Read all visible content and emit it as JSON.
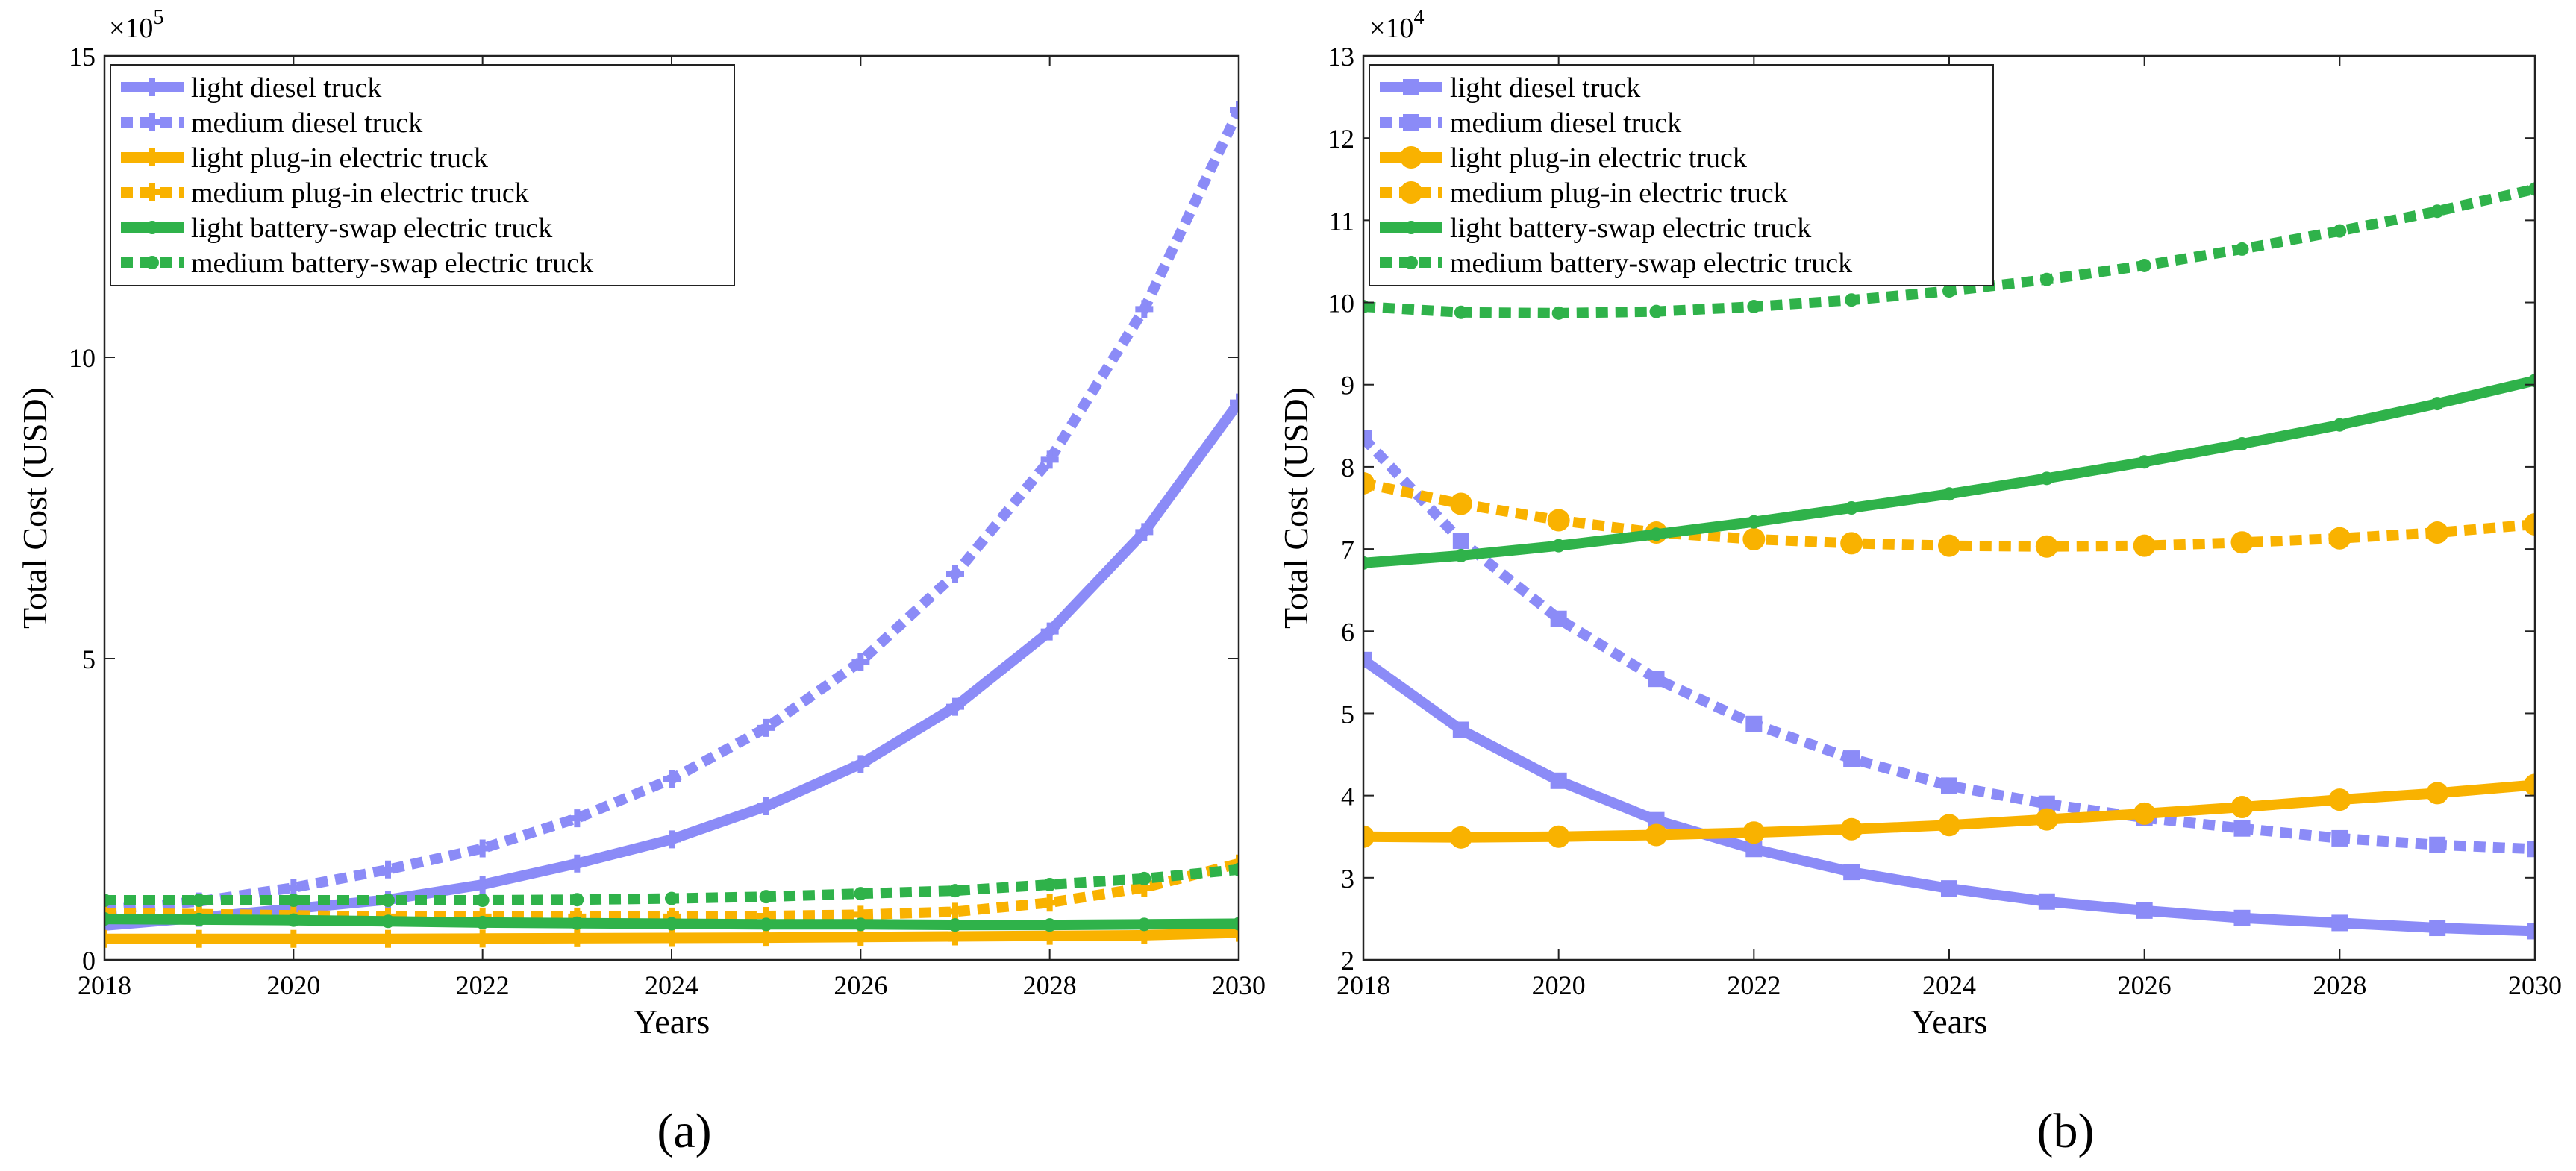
{
  "chart_data": [
    {
      "type": "line",
      "panel_label": "(a)",
      "xlabel": "Years",
      "ylabel": "Total Cost (USD)",
      "y_multiplier": "×10",
      "y_multiplier_exp": "5",
      "xlim": [
        2018,
        2030
      ],
      "ylim": [
        0,
        15
      ],
      "xticks": [
        2018,
        2020,
        2022,
        2024,
        2026,
        2028,
        2030
      ],
      "xtick_labels": [
        "2018",
        "2020",
        "2022",
        "2024",
        "2026",
        "2028",
        "2030"
      ],
      "yticks": [
        0,
        5,
        10,
        15
      ],
      "ytick_labels": [
        "0",
        "5",
        "10",
        "15"
      ],
      "legend_position": "top-left",
      "x": [
        2018,
        2019,
        2020,
        2021,
        2022,
        2023,
        2024,
        2025,
        2026,
        2027,
        2028,
        2029,
        2030
      ],
      "series": [
        {
          "name": "light diesel truck",
          "color": "#8b8bf7",
          "style": "solid",
          "marker": "plus",
          "values": [
            0.57,
            0.7,
            0.85,
            1.0,
            1.25,
            1.6,
            2.0,
            2.55,
            3.25,
            4.2,
            5.45,
            7.1,
            9.25
          ]
        },
        {
          "name": "medium diesel truck",
          "color": "#8b8bf7",
          "style": "dotted",
          "marker": "plus",
          "values": [
            0.83,
            0.97,
            1.2,
            1.5,
            1.85,
            2.35,
            3.0,
            3.85,
            4.95,
            6.4,
            8.3,
            10.8,
            14.1
          ]
        },
        {
          "name": "light plug-in electric truck",
          "color": "#f9b200",
          "style": "solid",
          "marker": "plus",
          "values": [
            0.35,
            0.35,
            0.35,
            0.35,
            0.355,
            0.36,
            0.365,
            0.37,
            0.38,
            0.39,
            0.4,
            0.41,
            0.45
          ]
        },
        {
          "name": "medium plug-in electric truck",
          "color": "#f9b200",
          "style": "dotted",
          "marker": "plus",
          "values": [
            0.78,
            0.76,
            0.74,
            0.72,
            0.72,
            0.72,
            0.72,
            0.73,
            0.75,
            0.8,
            0.95,
            1.2,
            1.6
          ]
        },
        {
          "name": "light battery-swap electric truck",
          "color": "#2fb24a",
          "style": "solid",
          "marker": "dot",
          "values": [
            0.68,
            0.67,
            0.66,
            0.64,
            0.62,
            0.61,
            0.6,
            0.59,
            0.59,
            0.58,
            0.58,
            0.59,
            0.6
          ]
        },
        {
          "name": "medium battery-swap electric truck",
          "color": "#2fb24a",
          "style": "dotted",
          "marker": "dot",
          "values": [
            0.99,
            0.99,
            0.99,
            0.99,
            0.99,
            1.0,
            1.02,
            1.05,
            1.1,
            1.15,
            1.25,
            1.35,
            1.5
          ]
        }
      ]
    },
    {
      "type": "line",
      "panel_label": "(b)",
      "xlabel": "Years",
      "ylabel": "Total Cost (USD)",
      "y_multiplier": "×10",
      "y_multiplier_exp": "4",
      "xlim": [
        2018,
        2030
      ],
      "ylim": [
        2,
        13
      ],
      "xticks": [
        2018,
        2020,
        2022,
        2024,
        2026,
        2028,
        2030
      ],
      "xtick_labels": [
        "2018",
        "2020",
        "2022",
        "2024",
        "2026",
        "2028",
        "2030"
      ],
      "yticks": [
        2,
        3,
        4,
        5,
        6,
        7,
        8,
        9,
        10,
        11,
        12,
        13
      ],
      "ytick_labels": [
        "2",
        "3",
        "4",
        "5",
        "6",
        "7",
        "8",
        "9",
        "10",
        "11",
        "12",
        "13"
      ],
      "legend_position": "top-left",
      "x": [
        2018,
        2019,
        2020,
        2021,
        2022,
        2023,
        2024,
        2025,
        2026,
        2027,
        2028,
        2029,
        2030
      ],
      "series": [
        {
          "name": "light diesel truck",
          "color": "#8b8bf7",
          "style": "solid",
          "marker": "square",
          "values": [
            5.65,
            4.8,
            4.18,
            3.7,
            3.35,
            3.07,
            2.87,
            2.71,
            2.6,
            2.51,
            2.45,
            2.39,
            2.35
          ]
        },
        {
          "name": "medium diesel truck",
          "color": "#8b8bf7",
          "style": "dotted",
          "marker": "square",
          "values": [
            8.35,
            7.1,
            6.15,
            5.42,
            4.87,
            4.45,
            4.12,
            3.9,
            3.73,
            3.6,
            3.48,
            3.4,
            3.35
          ]
        },
        {
          "name": "light plug-in electric truck",
          "color": "#f9b200",
          "style": "solid",
          "marker": "circle",
          "values": [
            3.5,
            3.49,
            3.5,
            3.52,
            3.55,
            3.59,
            3.64,
            3.71,
            3.78,
            3.86,
            3.95,
            4.03,
            4.13
          ]
        },
        {
          "name": "medium plug-in electric truck",
          "color": "#f9b200",
          "style": "dotted",
          "marker": "circle",
          "values": [
            7.8,
            7.55,
            7.35,
            7.2,
            7.12,
            7.07,
            7.04,
            7.03,
            7.04,
            7.08,
            7.13,
            7.2,
            7.3
          ]
        },
        {
          "name": "light battery-swap electric truck",
          "color": "#2fb24a",
          "style": "solid",
          "marker": "dot",
          "values": [
            6.83,
            6.92,
            7.04,
            7.18,
            7.33,
            7.5,
            7.67,
            7.86,
            8.06,
            8.28,
            8.51,
            8.77,
            9.05
          ]
        },
        {
          "name": "medium battery-swap electric truck",
          "color": "#2fb24a",
          "style": "dotted",
          "marker": "dot",
          "values": [
            9.95,
            9.88,
            9.87,
            9.89,
            9.95,
            10.03,
            10.14,
            10.28,
            10.45,
            10.65,
            10.87,
            11.11,
            11.38
          ]
        }
      ]
    }
  ]
}
